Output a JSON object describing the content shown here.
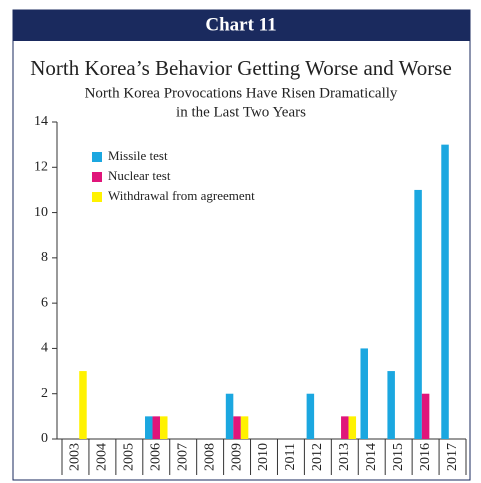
{
  "chart_data": {
    "type": "bar",
    "header": "Chart 11",
    "title": "North Korea’s Behavior Getting Worse and Worse",
    "subtitle": [
      "North Korea Provocations Have Risen Dramatically",
      "in the Last Two Years"
    ],
    "categories": [
      "2003",
      "2004",
      "2005",
      "2006",
      "2007",
      "2008",
      "2009",
      "2010",
      "2011",
      "2012",
      "2013",
      "2014",
      "2015",
      "2016",
      "2017"
    ],
    "series": [
      {
        "name": "Missile test",
        "color": "#1ba7e0",
        "values": [
          0,
          0,
          0,
          1,
          0,
          0,
          2,
          0,
          0,
          2,
          0,
          4,
          3,
          11,
          13
        ]
      },
      {
        "name": "Nuclear test",
        "color": "#e0157a",
        "values": [
          0,
          0,
          0,
          1,
          0,
          0,
          1,
          0,
          0,
          0,
          1,
          0,
          0,
          2,
          0
        ]
      },
      {
        "name": "Withdrawal from agreement",
        "color": "#fff200",
        "values": [
          3,
          0,
          0,
          1,
          0,
          0,
          1,
          0,
          0,
          0,
          1,
          0,
          0,
          0,
          0
        ]
      }
    ],
    "ylim": [
      0,
      14
    ],
    "yticks": [
      0,
      2,
      4,
      6,
      8,
      10,
      12,
      14
    ],
    "legend": "upper left"
  }
}
